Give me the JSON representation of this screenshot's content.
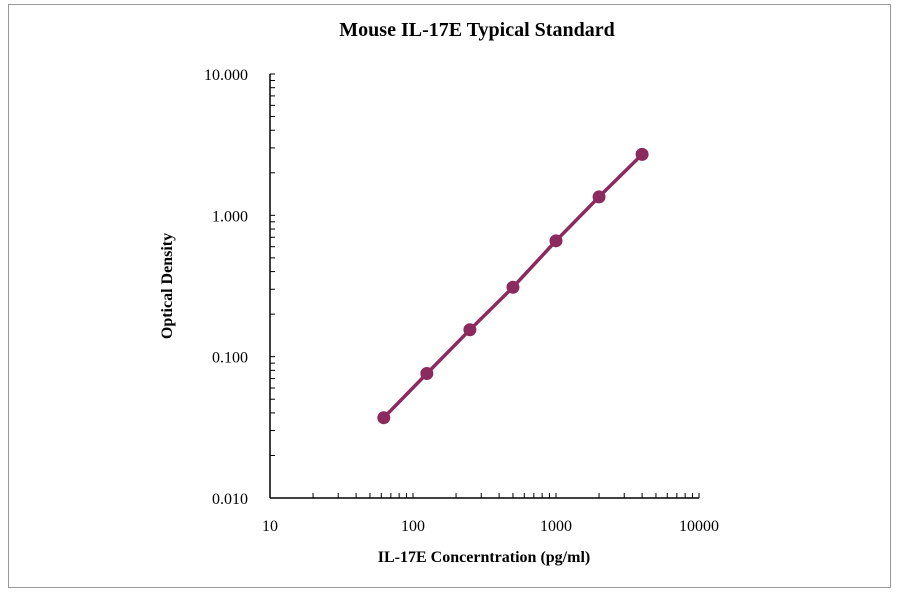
{
  "chart_data": {
    "type": "line",
    "title": "Mouse IL-17E Typical Standard",
    "xlabel": "IL-17E Concerntration (pg/ml)",
    "ylabel": "Optical Density",
    "x_scale": "log",
    "y_scale": "log",
    "xlim": [
      10,
      10000
    ],
    "ylim": [
      0.01,
      10
    ],
    "x_ticks": [
      "10",
      "100",
      "1000",
      "10000"
    ],
    "y_ticks": [
      "0.010",
      "0.100",
      "1.000",
      "10.000"
    ],
    "grid": false,
    "legend": "none",
    "series": [
      {
        "color": "#8b2a5e",
        "x": [
          62.5,
          125,
          250,
          500,
          1000,
          2000,
          4000
        ],
        "y": [
          0.037,
          0.076,
          0.155,
          0.31,
          0.66,
          1.35,
          2.7
        ]
      }
    ]
  }
}
